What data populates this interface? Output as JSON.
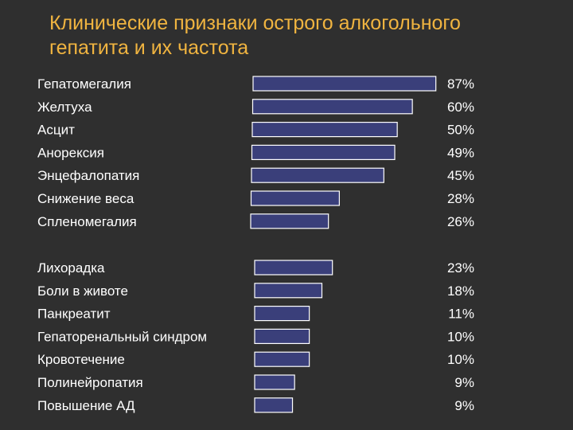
{
  "slide": {
    "title_line1": "Клинические признаки острого алкогольного",
    "title_line2": "гепатита и их частота"
  },
  "colors": {
    "background": "#2f2f2f",
    "title": "#f0b440",
    "bar_fill": "#3a3f7a",
    "bar_stroke": "#ffffff",
    "text": "#ffffff"
  },
  "chart_data": {
    "type": "bar",
    "orientation": "horizontal",
    "title": "Клинические признаки острого алкогольного гепатита и их частота",
    "unit": "%",
    "groups": [
      {
        "categories": [
          "Гепатомегалия",
          "Желтуха",
          "Асцит",
          "Анорексия",
          "Энцефалопатия",
          "Снижение веса",
          "Спленомегалия"
        ],
        "values": [
          87,
          60,
          50,
          49,
          45,
          28,
          26
        ],
        "value_labels": [
          "87%",
          "60%",
          "50%",
          "49%",
          "45%",
          "28%",
          "26%"
        ],
        "bar_values": [
          87,
          76,
          69,
          68,
          63,
          42,
          37
        ]
      },
      {
        "categories": [
          "Лихорадка",
          "Боли в животе",
          "Панкреатит",
          "Гепаторенальный синдром",
          "Кровотечение",
          "Полинейропатия",
          "Повышение АД"
        ],
        "values": [
          23,
          18,
          11,
          10,
          10,
          9,
          9
        ],
        "value_labels": [
          "23%",
          "18%",
          "11%",
          "10%",
          "10%",
          "9%",
          "9%"
        ],
        "bar_values": [
          37,
          32,
          26,
          26,
          26,
          19,
          18
        ]
      }
    ]
  }
}
